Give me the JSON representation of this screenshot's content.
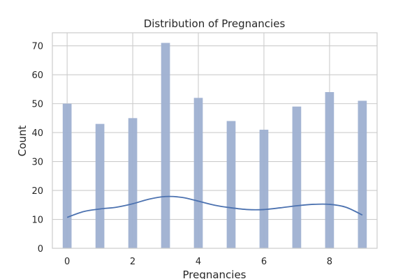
{
  "chart_data": {
    "type": "bar",
    "title": "Distribution of Pregnancies",
    "xlabel": "Pregnancies",
    "ylabel": "Count",
    "xlim": [
      -0.45,
      9.45
    ],
    "ylim": [
      0,
      74.5
    ],
    "x_ticks": [
      0,
      2,
      4,
      6,
      8
    ],
    "y_ticks": [
      0,
      10,
      20,
      30,
      40,
      50,
      60,
      70
    ],
    "bar_width": 0.27,
    "grid": true,
    "bar_color": "#9eb0d1",
    "kde_color": "#4c72b0",
    "bars": [
      {
        "x": 0,
        "count": 50
      },
      {
        "x": 1,
        "count": 43
      },
      {
        "x": 2,
        "count": 45
      },
      {
        "x": 3,
        "count": 71
      },
      {
        "x": 4,
        "count": 52
      },
      {
        "x": 5,
        "count": 44
      },
      {
        "x": 6,
        "count": 41
      },
      {
        "x": 7,
        "count": 49
      },
      {
        "x": 8,
        "count": 54
      },
      {
        "x": 9,
        "count": 51
      }
    ],
    "kde": {
      "name": "KDE",
      "x": [
        0,
        0.5,
        1,
        1.5,
        2,
        2.5,
        3,
        3.5,
        4,
        4.5,
        5,
        5.5,
        6,
        6.5,
        7,
        7.5,
        8,
        8.5,
        9
      ],
      "y": [
        10.7,
        12.7,
        13.6,
        14.2,
        15.4,
        17.0,
        17.9,
        17.6,
        16.3,
        14.9,
        14.0,
        13.4,
        13.4,
        14.0,
        14.7,
        15.2,
        15.2,
        14.2,
        11.5
      ]
    }
  }
}
